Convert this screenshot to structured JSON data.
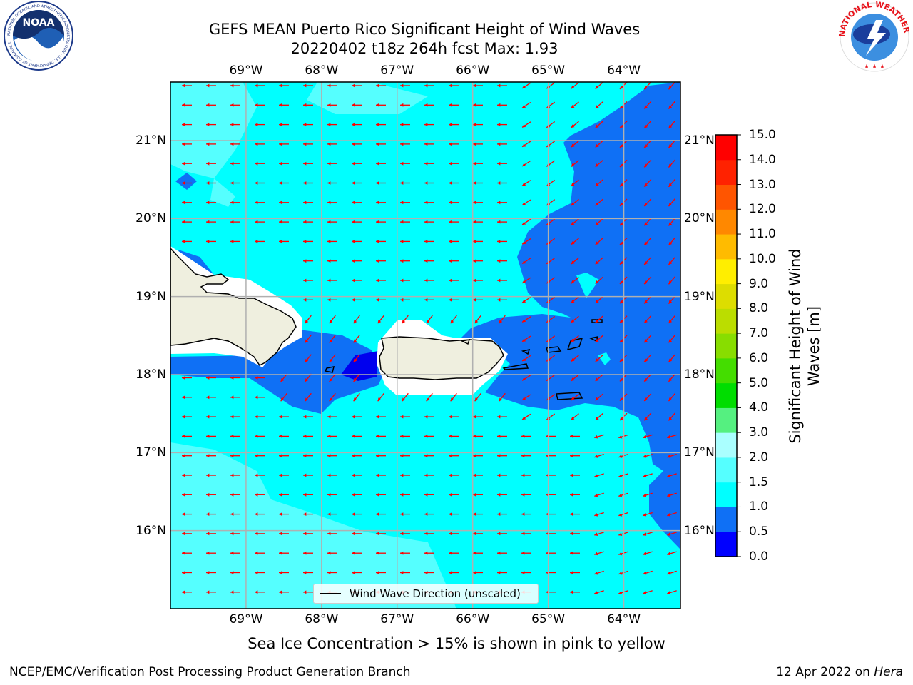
{
  "title": {
    "line1": "GEFS MEAN Puerto Rico Significant Height of Wind Waves",
    "line2": "20220402 t18z 264h fcst   Max: 1.93"
  },
  "logos": {
    "left": {
      "text": "NOAA",
      "ring_text": "NATIONAL OCEANIC AND ATMOSPHERIC ADMINISTRATION · U.S. DEPARTMENT OF COMMERCE"
    },
    "right": {
      "ring_text": "NATIONAL WEATHER SERVICE"
    }
  },
  "map": {
    "extent": {
      "lon": [
        -70.0,
        -63.25
      ],
      "lat": [
        15.0,
        21.75
      ]
    },
    "lon_ticks": [
      -69,
      -68,
      -67,
      -66,
      -65,
      -64
    ],
    "lon_labels": [
      "69°W",
      "68°W",
      "67°W",
      "66°W",
      "65°W",
      "64°W"
    ],
    "lat_ticks": [
      16,
      17,
      18,
      19,
      20,
      21
    ],
    "lat_labels": [
      "16°N",
      "17°N",
      "18°N",
      "19°N",
      "20°N",
      "21°N"
    ],
    "gridlines": true,
    "colors": {
      "lightest": "#55ffff",
      "light": "#00f5f5",
      "cyan": "#00ffff",
      "mid_blue": "#0f70f5",
      "deep_blue": "#0000ee",
      "land": "#efefdf",
      "arrow": "#ff0000"
    }
  },
  "colorbar": {
    "label": "Significant Height of Wind Waves [m]",
    "ticks": [
      "0.0",
      "0.5",
      "1.0",
      "1.5",
      "2.0",
      "3.0",
      "4.0",
      "5.0",
      "6.0",
      "7.0",
      "8.0",
      "9.0",
      "10.0",
      "11.0",
      "12.0",
      "13.0",
      "14.0",
      "15.0"
    ],
    "colors": [
      "#0000ff",
      "#0f70f5",
      "#00ffff",
      "#55ffff",
      "#aaffff",
      "#55f080",
      "#00dd00",
      "#44dd00",
      "#88dd00",
      "#bbdd00",
      "#dddd00",
      "#ffee00",
      "#ffbb00",
      "#ff8800",
      "#ff5500",
      "#ff2200",
      "#ff0000"
    ]
  },
  "legend": {
    "label": "Wind Wave Direction (unscaled)"
  },
  "note": "Sea Ice Concentration > 15% is shown in pink to yellow",
  "footer": {
    "left": "NCEP/EMC/Verification Post Processing Product Generation Branch",
    "date": "12 Apr 2022 on ",
    "host": "Hera"
  }
}
